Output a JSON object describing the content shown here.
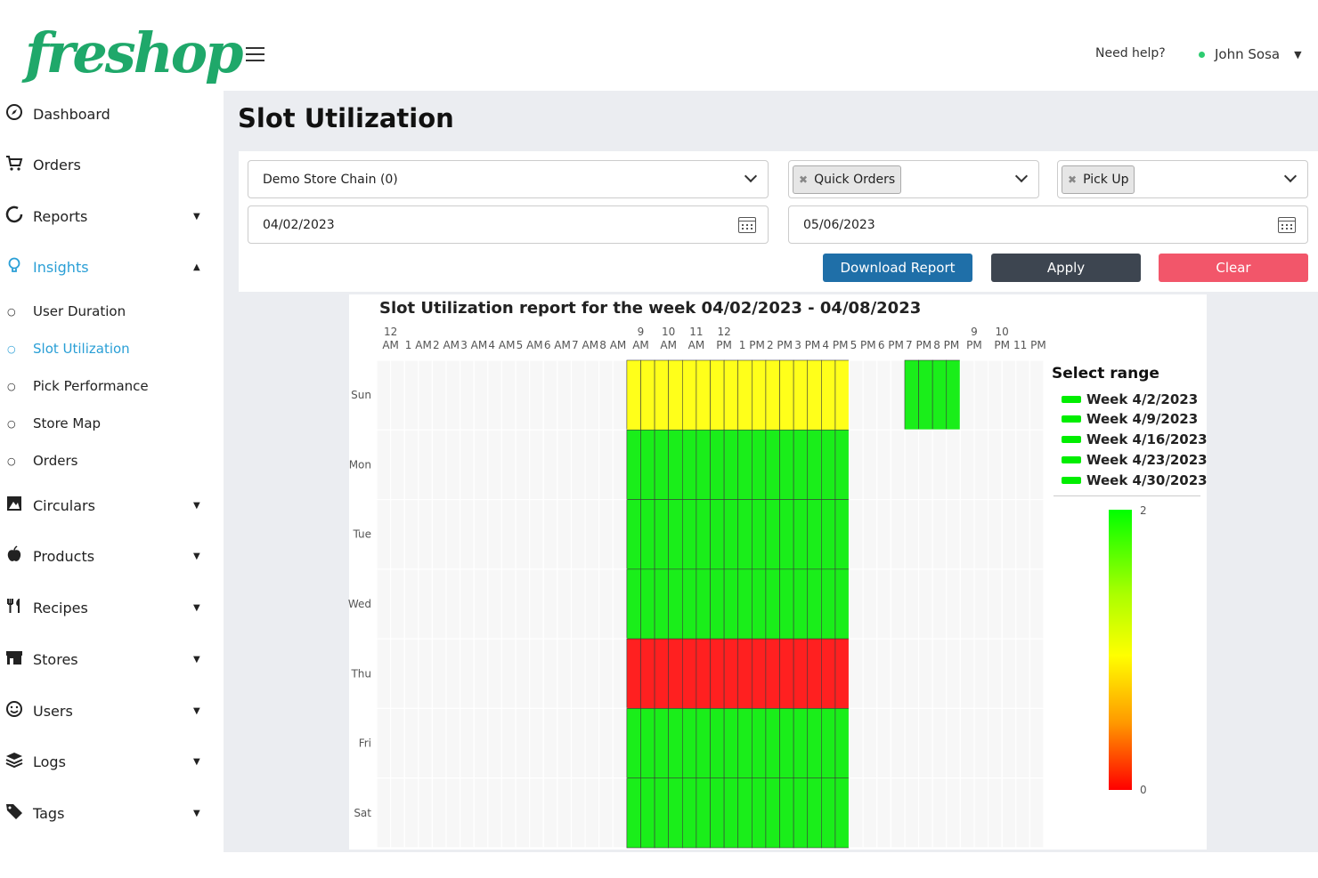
{
  "header": {
    "logo": "freshop",
    "need_help": "Need help?",
    "user_name": "John Sosa",
    "status_color": "#2ecc71"
  },
  "sidebar": {
    "items": [
      {
        "label": "Dashboard",
        "icon": "compass-icon"
      },
      {
        "label": "Orders",
        "icon": "cart-icon"
      },
      {
        "label": "Reports",
        "icon": "circle-notch-icon",
        "expandable": true
      },
      {
        "label": "Insights",
        "icon": "lightbulb-icon",
        "expandable": true,
        "expanded": true
      },
      {
        "label": "Circulars",
        "icon": "circular-icon",
        "expandable": true
      },
      {
        "label": "Products",
        "icon": "apple-icon",
        "expandable": true
      },
      {
        "label": "Recipes",
        "icon": "utensils-icon",
        "expandable": true
      },
      {
        "label": "Stores",
        "icon": "store-icon",
        "expandable": true
      },
      {
        "label": "Users",
        "icon": "smile-icon",
        "expandable": true
      },
      {
        "label": "Logs",
        "icon": "layers-icon",
        "expandable": true
      },
      {
        "label": "Tags",
        "icon": "tag-icon",
        "expandable": true
      }
    ],
    "insights_sub": [
      "User Duration",
      "Slot Utilization",
      "Pick Performance",
      "Store Map",
      "Orders"
    ],
    "active_sub": "Slot Utilization",
    "accent": "#2a9fd6"
  },
  "page": {
    "title": "Slot Utilization"
  },
  "filters": {
    "store": "Demo Store Chain (0)",
    "order_type_chip": "Quick Orders",
    "fulfillment_chip": "Pick Up",
    "start_date": "04/02/2023",
    "end_date": "05/06/2023",
    "download_label": "Download Report",
    "apply_label": "Apply",
    "clear_label": "Clear",
    "download_color": "#1f6fa8",
    "apply_color": "#3d4550",
    "clear_color": "#f2566a"
  },
  "chart_data": {
    "type": "heatmap",
    "title": "Slot Utilization report for the week 04/02/2023 - 04/08/2023",
    "days": [
      "Sun",
      "Mon",
      "Tue",
      "Wed",
      "Thu",
      "Fri",
      "Sat"
    ],
    "hour_labels": [
      [
        "12",
        "AM"
      ],
      [
        "1 AM"
      ],
      [
        "2 AM"
      ],
      [
        "3 AM"
      ],
      [
        "4 AM"
      ],
      [
        "5 AM"
      ],
      [
        "6 AM"
      ],
      [
        "7 AM"
      ],
      [
        "8 AM"
      ],
      [
        "9",
        "AM"
      ],
      [
        "10",
        "AM"
      ],
      [
        "11",
        "AM"
      ],
      [
        "12",
        "PM"
      ],
      [
        "1 PM"
      ],
      [
        "2 PM"
      ],
      [
        "3 PM"
      ],
      [
        "4 PM"
      ],
      [
        "5 PM"
      ],
      [
        "6 PM"
      ],
      [
        "7 PM"
      ],
      [
        "8 PM"
      ],
      [
        "9",
        "PM"
      ],
      [
        "10",
        "PM"
      ],
      [
        "11 PM"
      ]
    ],
    "slots_per_hour": 2,
    "range": [
      0,
      2
    ],
    "values": {
      "Sun": [
        {
          "from": 18,
          "to": 34,
          "value": 1
        },
        {
          "from": 38,
          "to": 42,
          "value": 2
        }
      ],
      "Mon": [
        {
          "from": 18,
          "to": 34,
          "value": 2
        }
      ],
      "Tue": [
        {
          "from": 18,
          "to": 34,
          "value": 2
        }
      ],
      "Wed": [
        {
          "from": 18,
          "to": 34,
          "value": 2
        }
      ],
      "Thu": [
        {
          "from": 18,
          "to": 34,
          "value": 0
        }
      ],
      "Fri": [
        {
          "from": 18,
          "to": 34,
          "value": 2
        }
      ],
      "Sat": [
        {
          "from": 18,
          "to": 34,
          "value": 2
        }
      ]
    },
    "legend_title": "Select range",
    "legend": [
      "Week 4/2/2023",
      "Week 4/9/2023",
      "Week 4/16/2023",
      "Week 4/23/2023",
      "Week 4/30/2023"
    ],
    "legend_color": "#00ee00",
    "colorbar_max": "2",
    "colorbar_min": "0",
    "colors": {
      "low": "#ff2020",
      "mid": "#ffff1a",
      "high": "#1aee1a",
      "empty": "#f7f7f7"
    }
  }
}
